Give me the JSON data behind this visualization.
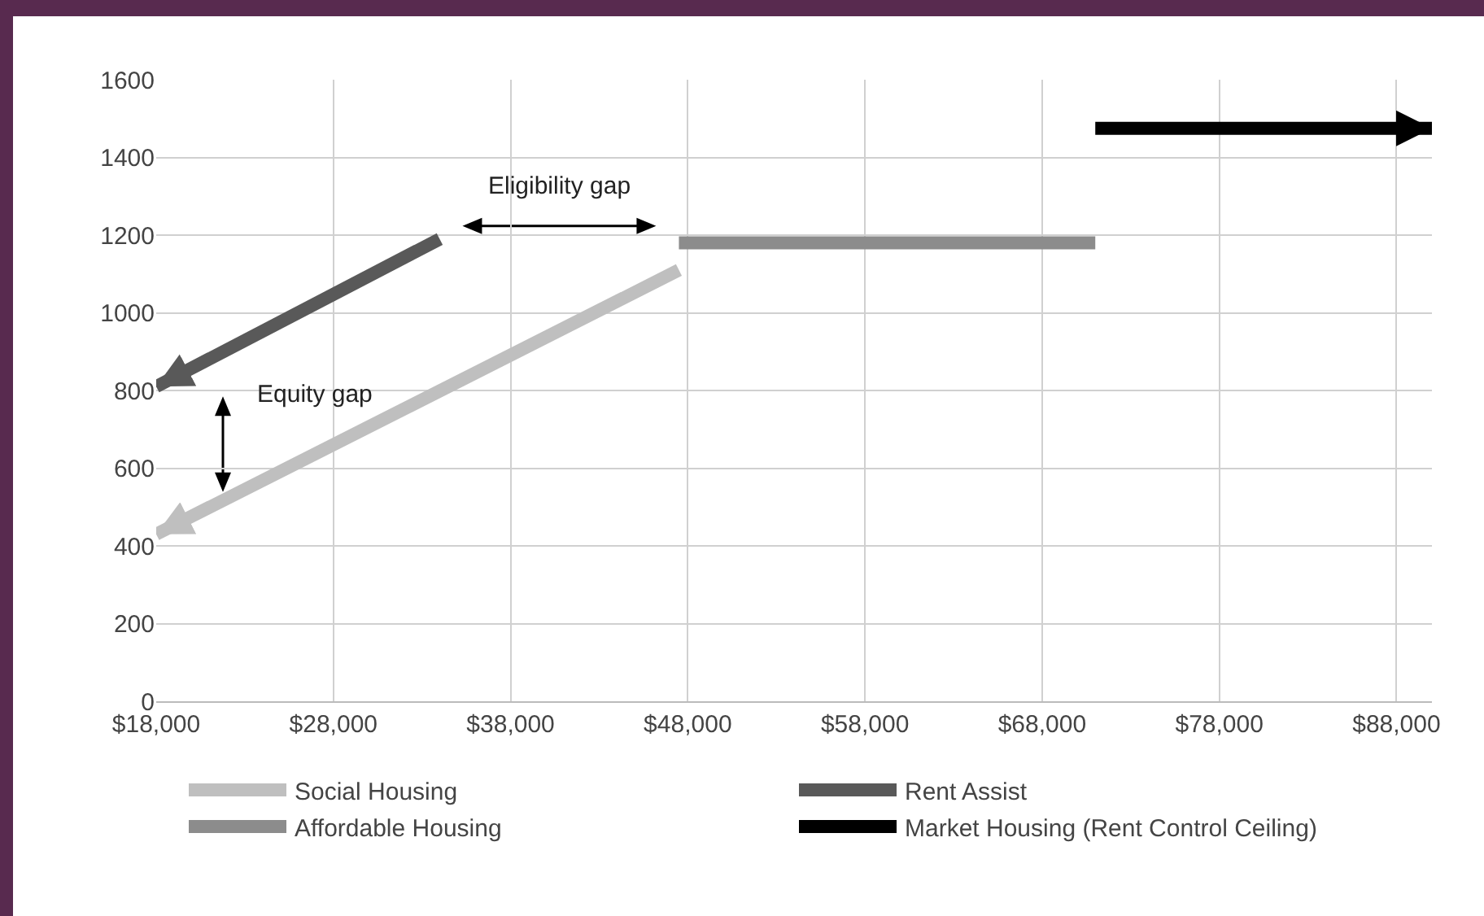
{
  "chart_data": {
    "type": "line",
    "series": [
      {
        "name": "Social Housing",
        "color": "#bfbfbf",
        "x": [
          47500,
          18000
        ],
        "values": [
          1110,
          430
        ]
      },
      {
        "name": "Rent Assist",
        "color": "#595959",
        "x": [
          34000,
          18000
        ],
        "values": [
          1190,
          810
        ]
      },
      {
        "name": "Affordable Housing",
        "color": "#8c8c8c",
        "x": [
          47500,
          71000
        ],
        "values": [
          1180,
          1180
        ]
      },
      {
        "name": "Market Housing (Rent Control Ceiling)",
        "color": "#000000",
        "x": [
          71000,
          90000
        ],
        "values": [
          1475,
          1475
        ]
      }
    ],
    "xlim": [
      18000,
      90000
    ],
    "xticks": [
      {
        "value": 18000,
        "label": "$18,000"
      },
      {
        "value": 28000,
        "label": "$28,000"
      },
      {
        "value": 38000,
        "label": "$38,000"
      },
      {
        "value": 48000,
        "label": "$48,000"
      },
      {
        "value": 58000,
        "label": "$58,000"
      },
      {
        "value": 68000,
        "label": "$68,000"
      },
      {
        "value": 78000,
        "label": "$78,000"
      },
      {
        "value": 88000,
        "label": "$88,000"
      }
    ],
    "ylim": [
      0,
      1600
    ],
    "yticks": [
      0,
      200,
      400,
      600,
      800,
      1000,
      1200,
      1400,
      1600
    ],
    "annotations": [
      "Eligibility gap",
      "Equity gap"
    ],
    "grid": true,
    "legend": "bottom"
  }
}
